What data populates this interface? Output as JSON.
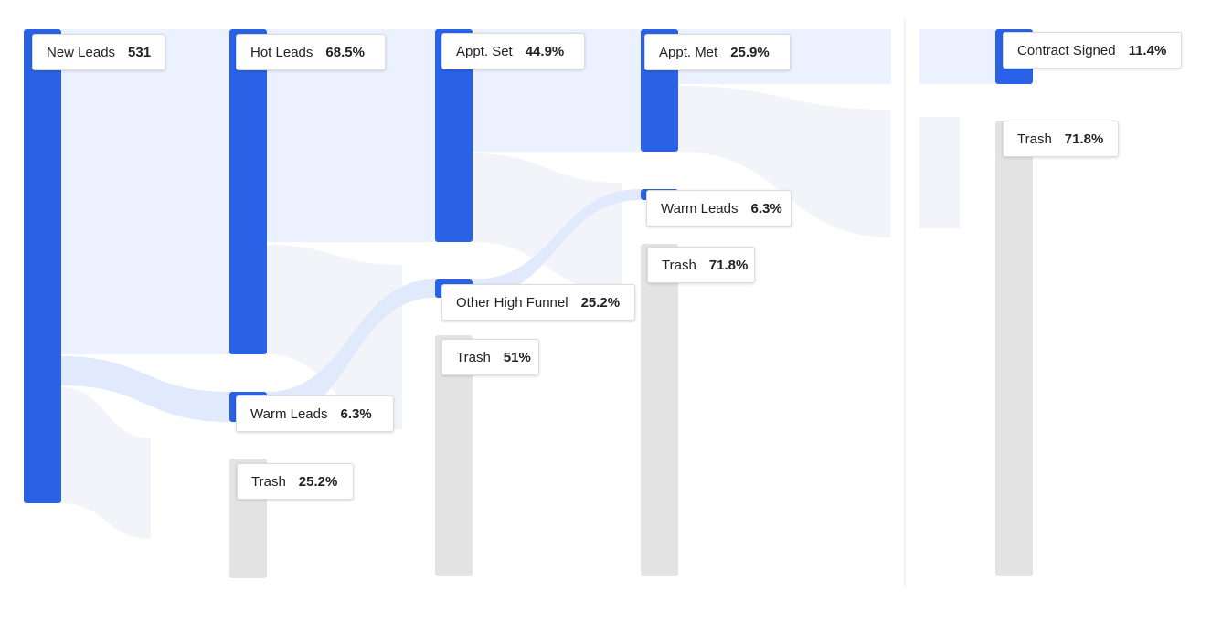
{
  "chart_data": {
    "type": "sankey",
    "nodes": [
      {
        "id": "new_leads",
        "name": "New Leads",
        "value": "531",
        "status": "active"
      },
      {
        "id": "hot_leads_1",
        "name": "Hot Leads",
        "value": "68.5%",
        "status": "active"
      },
      {
        "id": "warm_leads_1",
        "name": "Warm Leads",
        "value": "6.3%",
        "status": "active"
      },
      {
        "id": "trash_1",
        "name": "Trash",
        "value": "25.2%",
        "status": "trash"
      },
      {
        "id": "appt_set",
        "name": "Appt. Set",
        "value": "44.9%",
        "status": "active"
      },
      {
        "id": "other_high_funnel",
        "name": "Other High Funnel",
        "value": "25.2%",
        "status": "active"
      },
      {
        "id": "trash_2",
        "name": "Trash",
        "value": "51%",
        "status": "trash"
      },
      {
        "id": "appt_met",
        "name": "Appt. Met",
        "value": "25.9%",
        "status": "active"
      },
      {
        "id": "warm_leads_3",
        "name": "Warm Leads",
        "value": "6.3%",
        "status": "active"
      },
      {
        "id": "trash_3",
        "name": "Trash",
        "value": "71.8%",
        "status": "trash"
      },
      {
        "id": "contract_signed",
        "name": "Contract Signed",
        "value": "11.4%",
        "status": "active"
      },
      {
        "id": "trash_4",
        "name": "Trash",
        "value": "71.8%",
        "status": "trash"
      }
    ],
    "links": [
      {
        "source": "new_leads",
        "target": "hot_leads_1"
      },
      {
        "source": "new_leads",
        "target": "warm_leads_1"
      },
      {
        "source": "new_leads",
        "target": "trash_1"
      },
      {
        "source": "hot_leads_1",
        "target": "appt_set"
      },
      {
        "source": "hot_leads_1",
        "target": "trash_2"
      },
      {
        "source": "warm_leads_1",
        "target": "other_high_funnel"
      },
      {
        "source": "appt_set",
        "target": "appt_met"
      },
      {
        "source": "appt_set",
        "target": "trash_3"
      },
      {
        "source": "other_high_funnel",
        "target": "warm_leads_3"
      },
      {
        "source": "appt_met",
        "target": "contract_signed"
      },
      {
        "source": "appt_met",
        "target": "trash_4"
      }
    ],
    "colors": {
      "active": "#2962e6",
      "trash": "#e3e3e3",
      "flow": "#e8efff"
    }
  }
}
